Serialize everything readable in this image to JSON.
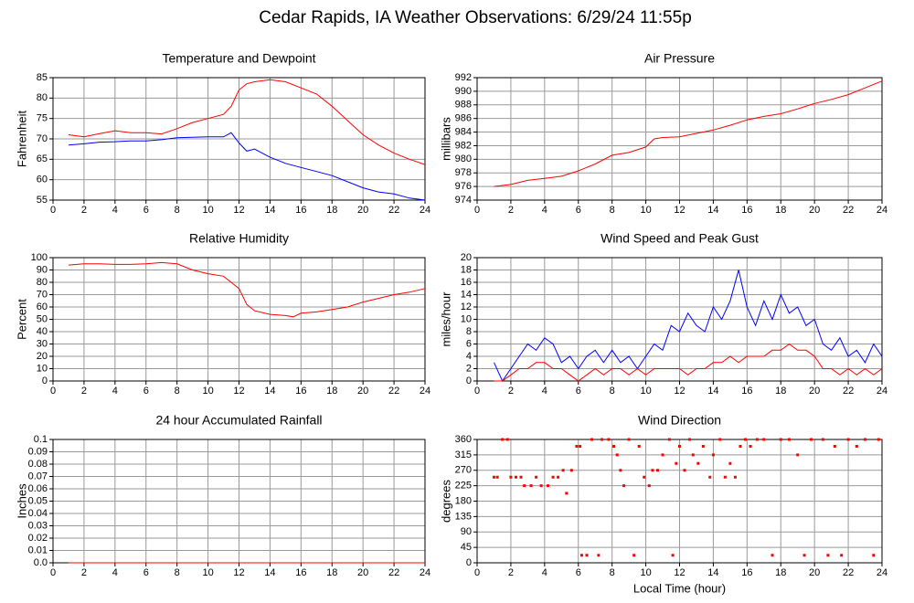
{
  "title": "Cedar Rapids, IA Weather Observations: 6/29/24 11:55p",
  "chart_data": [
    {
      "type": "line",
      "title": "Temperature and Dewpoint",
      "y_label": "Fahrenheit",
      "x": [
        1,
        2,
        3,
        4,
        5,
        6,
        7,
        8,
        9,
        10,
        11,
        11.5,
        12,
        12.5,
        13,
        14,
        15,
        16,
        17,
        18,
        19,
        20,
        21,
        22,
        23,
        24
      ],
      "series": [
        {
          "color": "#ff0000",
          "values": [
            71,
            70.5,
            71.3,
            72,
            71.5,
            71.5,
            71.2,
            72.5,
            74,
            75,
            76,
            78,
            82,
            83.5,
            84,
            84.5,
            84,
            82.5,
            81,
            78,
            74.5,
            71,
            68.5,
            66.5,
            65,
            63.7
          ]
        },
        {
          "color": "#0000ff",
          "values": [
            68.5,
            68.8,
            69.2,
            69.3,
            69.5,
            69.5,
            69.8,
            70.3,
            70.4,
            70.5,
            70.5,
            71.5,
            69,
            67,
            67.5,
            65.5,
            64,
            63,
            62,
            61,
            59.5,
            58,
            57,
            56.5,
            55.5,
            55
          ]
        }
      ],
      "xlim": [
        0,
        24
      ],
      "xticks": [
        0,
        2,
        4,
        6,
        8,
        10,
        12,
        14,
        16,
        18,
        20,
        22,
        24
      ],
      "ylim": [
        55,
        85
      ],
      "yticks": [
        55,
        60,
        65,
        70,
        75,
        80,
        85
      ],
      "grid": true
    },
    {
      "type": "line",
      "title": "Air Pressure",
      "y_label": "millibars",
      "x": [
        1,
        2,
        3,
        4,
        5,
        6,
        7,
        8,
        9,
        10,
        10.5,
        11,
        12,
        13,
        14,
        15,
        16,
        17,
        18,
        19,
        20,
        21,
        22,
        23,
        24
      ],
      "series": [
        {
          "color": "#ff0000",
          "values": [
            976,
            976.3,
            976.9,
            977.2,
            977.5,
            978.3,
            979.3,
            980.6,
            981,
            981.8,
            983,
            983.2,
            983.3,
            983.8,
            984.3,
            985,
            985.8,
            986.3,
            986.7,
            987.4,
            988.2,
            988.8,
            989.5,
            990.5,
            991.5
          ]
        }
      ],
      "xlim": [
        0,
        24
      ],
      "xticks": [
        0,
        2,
        4,
        6,
        8,
        10,
        12,
        14,
        16,
        18,
        20,
        22,
        24
      ],
      "ylim": [
        974,
        992
      ],
      "yticks": [
        974,
        976,
        978,
        980,
        982,
        984,
        986,
        988,
        990,
        992
      ],
      "grid": true
    },
    {
      "type": "line",
      "title": "Relative Humidity",
      "y_label": "Percent",
      "x": [
        1,
        2,
        3,
        4,
        5,
        6,
        7,
        8,
        9,
        10,
        11,
        12,
        12.5,
        13,
        14,
        15,
        15.5,
        16,
        17,
        18,
        19,
        20,
        21,
        22,
        23,
        24
      ],
      "series": [
        {
          "color": "#ff0000",
          "values": [
            94,
            95,
            95,
            94.5,
            94.5,
            95,
            96,
            95,
            90,
            87,
            85,
            75,
            62,
            57,
            54,
            53,
            52,
            55,
            56,
            58,
            60,
            64,
            67,
            70,
            72,
            75
          ]
        }
      ],
      "xlim": [
        0,
        24
      ],
      "xticks": [
        0,
        2,
        4,
        6,
        8,
        10,
        12,
        14,
        16,
        18,
        20,
        22,
        24
      ],
      "ylim": [
        0,
        100
      ],
      "yticks": [
        0,
        10,
        20,
        30,
        40,
        50,
        60,
        70,
        80,
        90,
        100
      ],
      "grid": true
    },
    {
      "type": "line",
      "title": "Wind Speed and Peak Gust",
      "y_label": "miles/hour",
      "x": [
        1,
        1.5,
        2,
        2.5,
        3,
        3.5,
        4,
        4.5,
        5,
        5.5,
        6,
        6.5,
        7,
        7.5,
        8,
        8.5,
        9,
        9.5,
        10,
        10.5,
        11,
        11.5,
        12,
        12.5,
        13,
        13.5,
        14,
        14.5,
        15,
        15.5,
        16,
        16.5,
        17,
        17.5,
        18,
        18.5,
        19,
        19.5,
        20,
        20.5,
        21,
        21.5,
        22,
        22.5,
        23,
        23.5,
        24
      ],
      "series": [
        {
          "color": "#0000ff",
          "values": [
            3,
            0,
            2,
            4,
            6,
            5,
            7,
            6,
            3,
            4,
            2,
            4,
            5,
            3,
            5,
            3,
            4,
            2,
            4,
            6,
            5,
            9,
            8,
            11,
            9,
            8,
            12,
            10,
            13,
            18,
            12,
            9,
            13,
            10,
            14,
            11,
            12,
            9,
            10,
            6,
            5,
            7,
            4,
            5,
            3,
            6,
            4
          ]
        },
        {
          "color": "#ff0000",
          "values": [
            0,
            0,
            1,
            2,
            2,
            3,
            3,
            2,
            2,
            1,
            0,
            1,
            2,
            1,
            2,
            2,
            1,
            2,
            1,
            2,
            2,
            2,
            2,
            1,
            2,
            2,
            3,
            3,
            4,
            3,
            4,
            4,
            4,
            5,
            5,
            6,
            5,
            5,
            4,
            2,
            2,
            1,
            2,
            1,
            2,
            1,
            2
          ]
        }
      ],
      "xlim": [
        0,
        24
      ],
      "xticks": [
        0,
        2,
        4,
        6,
        8,
        10,
        12,
        14,
        16,
        18,
        20,
        22,
        24
      ],
      "ylim": [
        0,
        20
      ],
      "yticks": [
        0,
        2,
        4,
        6,
        8,
        10,
        12,
        14,
        16,
        18,
        20
      ],
      "grid": true
    },
    {
      "type": "line",
      "title": "24 hour Accumulated Rainfall",
      "y_label": "Inches",
      "x": [
        1,
        24
      ],
      "series": [
        {
          "color": "#ff0000",
          "values": [
            0,
            0
          ]
        }
      ],
      "xlim": [
        0,
        24
      ],
      "xticks": [
        0,
        2,
        4,
        6,
        8,
        10,
        12,
        14,
        16,
        18,
        20,
        22,
        24
      ],
      "ylim": [
        0,
        0.1
      ],
      "yticks": [
        {
          "value": 0,
          "label": "0.0"
        },
        0.01,
        0.02,
        0.03,
        0.04,
        0.05,
        0.06,
        0.07,
        0.08,
        0.09,
        0.1
      ],
      "grid": true
    },
    {
      "type": "scatter",
      "title": "Wind Direction",
      "y_label": "degrees",
      "x_label": "Local Time (hour)",
      "x": [
        1,
        1.2,
        1.5,
        1.8,
        2,
        2.3,
        2.6,
        2.8,
        3.2,
        3.5,
        3.8,
        4.2,
        4.5,
        4.8,
        5.1,
        5.3,
        5.6,
        5.9,
        6.1,
        6.2,
        6.5,
        6.8,
        7.2,
        7.4,
        7.8,
        8.1,
        8.3,
        8.5,
        8.7,
        9,
        9.3,
        9.6,
        9.9,
        10.2,
        10.4,
        10.7,
        11,
        11.4,
        11.6,
        11.8,
        12,
        12.3,
        12.6,
        12.8,
        13.1,
        13.4,
        13.8,
        14,
        14.4,
        14.7,
        15,
        15.3,
        15.6,
        15.9,
        16.2,
        16.6,
        17,
        17.5,
        18,
        18.5,
        19,
        19.4,
        19.8,
        20.5,
        20.8,
        21.2,
        21.6,
        22,
        22.5,
        23,
        23.5,
        23.8
      ],
      "series": [
        {
          "color": "#ff0000",
          "values": [
            250,
            250,
            360,
            360,
            250,
            250,
            250,
            225,
            225,
            250,
            225,
            225,
            250,
            250,
            270,
            203,
            270,
            340,
            340,
            22,
            22,
            360,
            22,
            360,
            360,
            340,
            315,
            270,
            225,
            360,
            22,
            340,
            250,
            225,
            270,
            270,
            315,
            360,
            22,
            290,
            340,
            270,
            360,
            315,
            290,
            340,
            250,
            315,
            360,
            250,
            290,
            250,
            340,
            360,
            340,
            360,
            360,
            22,
            360,
            360,
            315,
            22,
            360,
            360,
            22,
            340,
            22,
            360,
            340,
            360,
            22,
            360
          ]
        }
      ],
      "xlim": [
        0,
        24
      ],
      "xticks": [
        0,
        2,
        4,
        6,
        8,
        10,
        12,
        14,
        16,
        18,
        20,
        22,
        24
      ],
      "ylim": [
        0,
        360
      ],
      "yticks": [
        0,
        45,
        90,
        135,
        180,
        225,
        270,
        315,
        360
      ],
      "grid": true
    }
  ]
}
